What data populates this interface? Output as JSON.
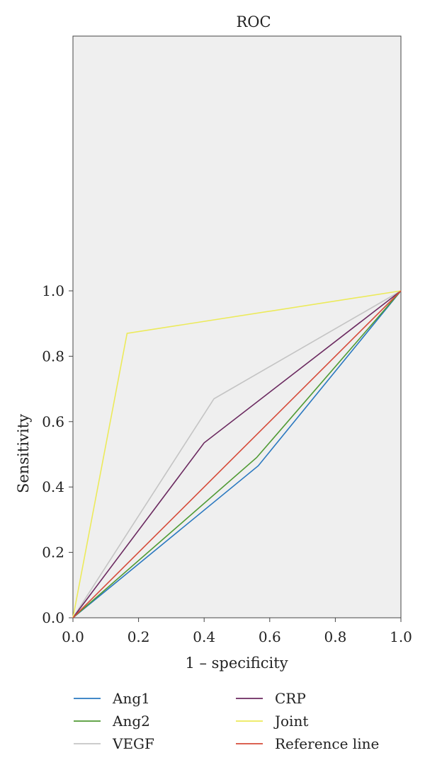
{
  "chart_data": {
    "type": "line",
    "title": "ROC",
    "xlabel": "1 – specificity",
    "ylabel": "Sensitivity",
    "xlim": [
      0,
      1
    ],
    "ylim": [
      0,
      1
    ],
    "x_ticks": [
      "0.0",
      "0.2",
      "0.4",
      "0.6",
      "0.8",
      "1.0"
    ],
    "y_ticks": [
      "0.0",
      "0.2",
      "0.4",
      "0.6",
      "0.8",
      "1.0"
    ],
    "grid": false,
    "legend_position": "bottom",
    "series": [
      {
        "name": "Ang1",
        "color": "#2a78c0",
        "x": [
          0,
          0.565,
          1
        ],
        "y": [
          0,
          0.465,
          1
        ]
      },
      {
        "name": "Ang2",
        "color": "#4f9a33",
        "x": [
          0,
          0.56,
          1
        ],
        "y": [
          0,
          0.49,
          1
        ]
      },
      {
        "name": "VEGF",
        "color": "#c4c4c4",
        "x": [
          0,
          0.43,
          1
        ],
        "y": [
          0,
          0.67,
          1
        ]
      },
      {
        "name": "CRP",
        "color": "#6b2a60",
        "x": [
          0,
          0.4,
          1
        ],
        "y": [
          0,
          0.535,
          1
        ]
      },
      {
        "name": "Joint",
        "color": "#ecea5a",
        "x": [
          0,
          0.165,
          1
        ],
        "y": [
          0,
          0.87,
          1
        ]
      },
      {
        "name": "Reference line",
        "color": "#d64b3a",
        "x": [
          0,
          1
        ],
        "y": [
          0,
          1
        ]
      }
    ]
  }
}
